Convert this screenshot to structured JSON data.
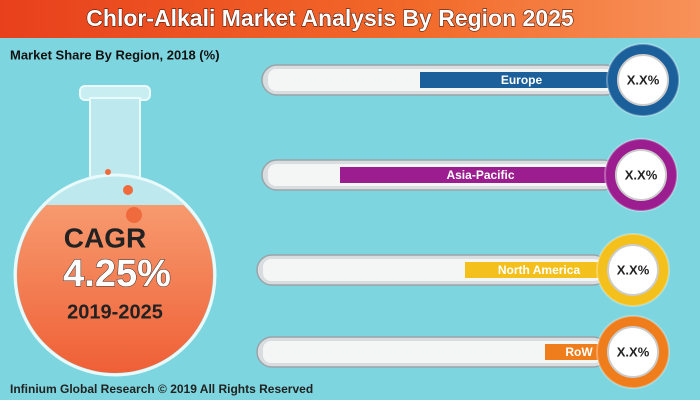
{
  "header": {
    "title": "Chlor-Alkali Market Analysis By Region 2025",
    "subtitle": "Market Share By Region, 2018 (%)"
  },
  "flask": {
    "label": "CAGR",
    "value": "4.25%",
    "period": "2019-2025"
  },
  "regions": [
    {
      "name": "Europe",
      "value": "X.X%",
      "color": "#1b5f9b"
    },
    {
      "name": "Asia-Pacific",
      "value": "X.X%",
      "color": "#9c1d8f"
    },
    {
      "name": "North America",
      "value": "X.X%",
      "color": "#f4c01c"
    },
    {
      "name": "RoW",
      "value": "X.X%",
      "color": "#ef7d1c"
    }
  ],
  "footer": "Infinium Global Research © 2019 All Rights Reserved"
}
